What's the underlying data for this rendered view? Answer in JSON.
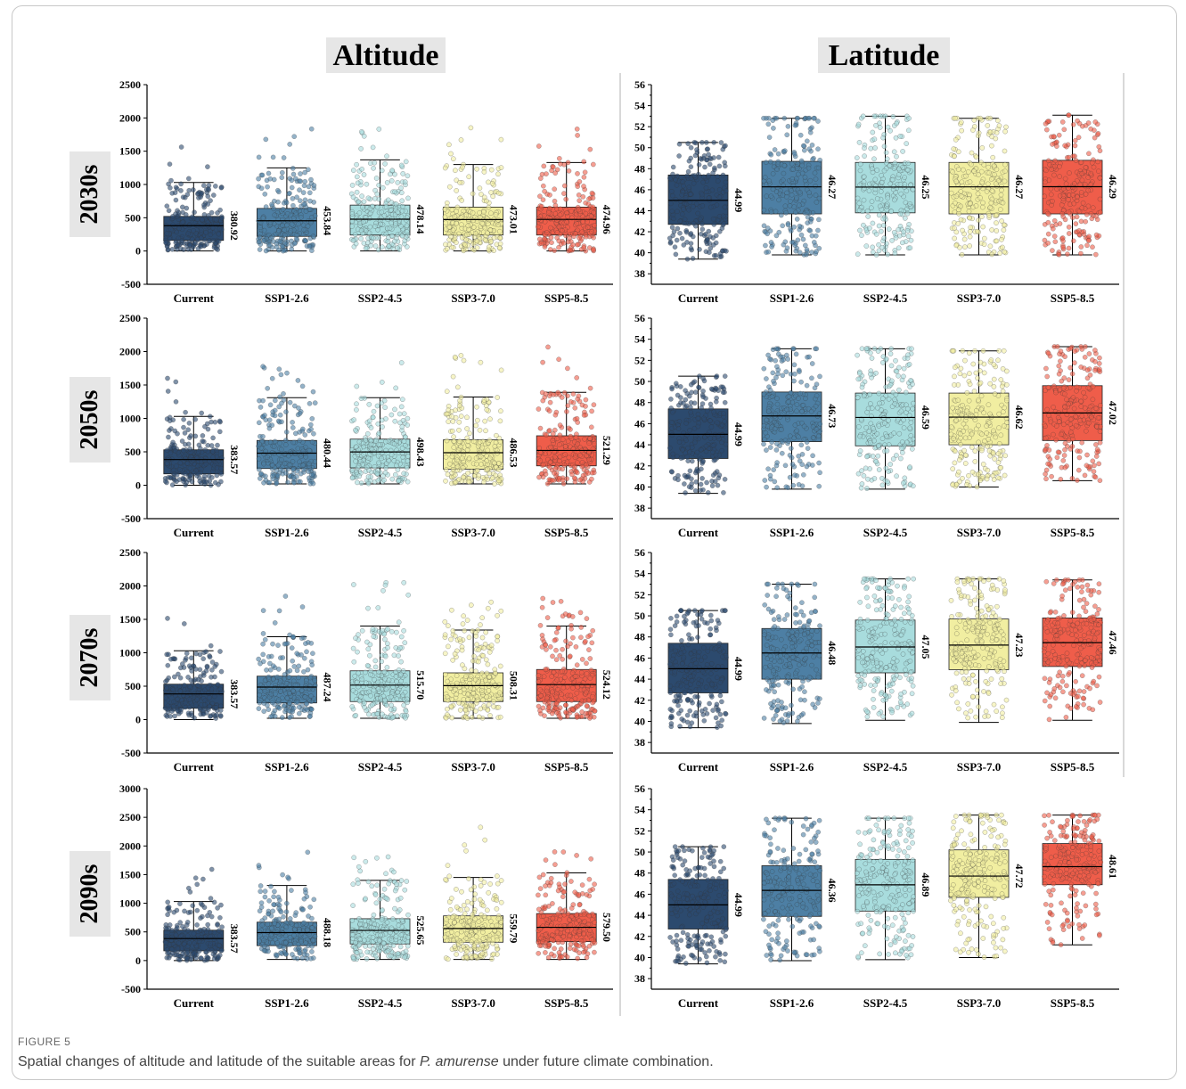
{
  "figure": {
    "label": "FIGURE 5",
    "caption_before": "Spatial changes of altitude and latitude of the suitable areas for ",
    "caption_species": "P. amurense",
    "caption_after": " under future climate combination."
  },
  "column_titles": {
    "altitude": "Altitude",
    "latitude": "Latitude"
  },
  "row_labels": [
    "2030s",
    "2050s",
    "2070s",
    "2090s"
  ],
  "colors": [
    "#2c4a6e",
    "#4d7fa4",
    "#a8dcdd",
    "#f1eea1",
    "#ef5d4a"
  ],
  "chart_data": [
    {
      "type": "box",
      "metric": "Altitude",
      "period": "2030s",
      "categories": [
        "Current",
        "SSP1-2.6",
        "SSP2-4.5",
        "SSP3-7.0",
        "SSP5-8.5"
      ],
      "ylim": [
        -500,
        2500
      ],
      "yticks": [
        -500,
        0,
        500,
        1000,
        1500,
        2000,
        2500
      ],
      "q1": [
        160,
        220,
        240,
        240,
        240
      ],
      "median": [
        381,
        454,
        478,
        473,
        475
      ],
      "q3": [
        520,
        640,
        690,
        660,
        660
      ],
      "whisker_low": [
        0,
        0,
        0,
        0,
        0
      ],
      "whisker_high": [
        1030,
        1250,
        1370,
        1300,
        1330
      ],
      "point_max": [
        1800,
        2040,
        1870,
        2100,
        2030
      ],
      "labels": [
        "380.92",
        "453.84",
        "478.14",
        "473.01",
        "474.96"
      ]
    },
    {
      "type": "box",
      "metric": "Latitude",
      "period": "2030s",
      "categories": [
        "Current",
        "SSP1-2.6",
        "SSP2-4.5",
        "SSP3-7.0",
        "SSP5-8.5"
      ],
      "ylim": [
        37,
        56
      ],
      "yticks": [
        38,
        40,
        42,
        44,
        46,
        48,
        50,
        52,
        54,
        56
      ],
      "q1": [
        42.7,
        43.7,
        43.8,
        43.7,
        43.7
      ],
      "median": [
        44.99,
        46.27,
        46.25,
        46.27,
        46.29
      ],
      "q3": [
        47.4,
        48.7,
        48.6,
        48.6,
        48.8
      ],
      "whisker_low": [
        39.4,
        39.8,
        39.8,
        39.8,
        39.8
      ],
      "whisker_high": [
        50.5,
        52.8,
        53.0,
        52.8,
        53.1
      ],
      "point_max": [
        50.5,
        52.8,
        53.0,
        52.8,
        53.1
      ],
      "labels": [
        "44.99",
        "46.27",
        "46.25",
        "46.27",
        "46.29"
      ]
    },
    {
      "type": "box",
      "metric": "Altitude",
      "period": "2050s",
      "categories": [
        "Current",
        "SSP1-2.6",
        "SSP2-4.5",
        "SSP3-7.0",
        "SSP5-8.5"
      ],
      "ylim": [
        -500,
        2500
      ],
      "yticks": [
        -500,
        0,
        500,
        1000,
        1500,
        2000,
        2500
      ],
      "q1": [
        170,
        250,
        260,
        240,
        290
      ],
      "median": [
        384,
        480,
        498,
        487,
        521
      ],
      "q3": [
        530,
        670,
        690,
        680,
        740
      ],
      "whisker_low": [
        0,
        20,
        20,
        20,
        20
      ],
      "whisker_high": [
        1030,
        1310,
        1310,
        1320,
        1390
      ],
      "point_max": [
        1630,
        1860,
        1980,
        1970,
        2100
      ],
      "labels": [
        "383.57",
        "480.44",
        "498.43",
        "486.53",
        "521.29"
      ]
    },
    {
      "type": "box",
      "metric": "Latitude",
      "period": "2050s",
      "categories": [
        "Current",
        "SSP1-2.6",
        "SSP2-4.5",
        "SSP3-7.0",
        "SSP5-8.5"
      ],
      "ylim": [
        37,
        56
      ],
      "yticks": [
        38,
        40,
        42,
        44,
        46,
        48,
        50,
        52,
        54,
        56
      ],
      "q1": [
        42.7,
        44.3,
        43.9,
        44.0,
        44.4
      ],
      "median": [
        44.99,
        46.73,
        46.59,
        46.62,
        47.02
      ],
      "q3": [
        47.4,
        49.0,
        48.9,
        48.9,
        49.6
      ],
      "whisker_low": [
        39.4,
        39.8,
        39.8,
        40.0,
        40.6
      ],
      "whisker_high": [
        50.5,
        53.1,
        53.1,
        52.9,
        53.3
      ],
      "point_max": [
        50.5,
        53.1,
        53.1,
        52.9,
        53.3
      ],
      "labels": [
        "44.99",
        "46.73",
        "46.59",
        "46.62",
        "47.02"
      ]
    },
    {
      "type": "box",
      "metric": "Altitude",
      "period": "2070s",
      "categories": [
        "Current",
        "SSP1-2.6",
        "SSP2-4.5",
        "SSP3-7.0",
        "SSP5-8.5"
      ],
      "ylim": [
        -500,
        2500
      ],
      "yticks": [
        -500,
        0,
        500,
        1000,
        1500,
        2000,
        2500
      ],
      "q1": [
        170,
        250,
        270,
        270,
        270
      ],
      "median": [
        384,
        487,
        516,
        508,
        524
      ],
      "q3": [
        530,
        650,
        730,
        700,
        750
      ],
      "whisker_low": [
        0,
        20,
        20,
        20,
        20
      ],
      "whisker_high": [
        1030,
        1240,
        1400,
        1340,
        1400
      ],
      "point_max": [
        1630,
        1850,
        2050,
        1760,
        1830
      ],
      "labels": [
        "383.57",
        "487.24",
        "515.70",
        "508.31",
        "524.12"
      ]
    },
    {
      "type": "box",
      "metric": "Latitude",
      "period": "2070s",
      "categories": [
        "Current",
        "SSP1-2.6",
        "SSP2-4.5",
        "SSP3-7.0",
        "SSP5-8.5"
      ],
      "ylim": [
        37,
        56
      ],
      "yticks": [
        38,
        40,
        42,
        44,
        46,
        48,
        50,
        52,
        54,
        56
      ],
      "q1": [
        42.7,
        44.0,
        44.6,
        44.9,
        45.2
      ],
      "median": [
        44.99,
        46.48,
        47.05,
        47.23,
        47.46
      ],
      "q3": [
        47.4,
        48.8,
        49.6,
        49.7,
        49.8
      ],
      "whisker_low": [
        39.4,
        39.8,
        40.1,
        39.9,
        40.1
      ],
      "whisker_high": [
        50.5,
        53.0,
        53.5,
        53.5,
        53.4
      ],
      "point_max": [
        50.5,
        53.0,
        53.5,
        53.5,
        53.4
      ],
      "labels": [
        "44.99",
        "46.48",
        "47.05",
        "47.23",
        "47.46"
      ]
    },
    {
      "type": "box",
      "metric": "Altitude",
      "period": "2090s",
      "categories": [
        "Current",
        "SSP1-2.6",
        "SSP2-4.5",
        "SSP3-7.0",
        "SSP5-8.5"
      ],
      "ylim": [
        -500,
        3000
      ],
      "yticks": [
        -500,
        0,
        500,
        1000,
        1500,
        2000,
        2500,
        3000
      ],
      "q1": [
        170,
        260,
        290,
        320,
        330
      ],
      "median": [
        384,
        488,
        526,
        560,
        580
      ],
      "q3": [
        530,
        670,
        730,
        780,
        820
      ],
      "whisker_low": [
        0,
        20,
        20,
        20,
        20
      ],
      "whisker_high": [
        1030,
        1310,
        1400,
        1450,
        1530
      ],
      "point_max": [
        1630,
        1930,
        1840,
        2390,
        2020
      ],
      "labels": [
        "383.57",
        "488.18",
        "525.65",
        "559.79",
        "579.50"
      ]
    },
    {
      "type": "box",
      "metric": "Latitude",
      "period": "2090s",
      "categories": [
        "Current",
        "SSP1-2.6",
        "SSP2-4.5",
        "SSP3-7.0",
        "SSP5-8.5"
      ],
      "ylim": [
        37,
        56
      ],
      "yticks": [
        38,
        40,
        42,
        44,
        46,
        48,
        50,
        52,
        54,
        56
      ],
      "q1": [
        42.7,
        43.9,
        44.4,
        45.7,
        46.9
      ],
      "median": [
        44.99,
        46.36,
        46.89,
        47.72,
        48.61
      ],
      "q3": [
        47.4,
        48.7,
        49.3,
        50.2,
        50.8
      ],
      "whisker_low": [
        39.4,
        39.7,
        39.8,
        40.0,
        41.2
      ],
      "whisker_high": [
        50.5,
        53.2,
        53.2,
        53.5,
        53.5
      ],
      "point_max": [
        50.5,
        53.2,
        53.2,
        53.5,
        53.5
      ],
      "labels": [
        "44.99",
        "46.36",
        "46.89",
        "47.72",
        "48.61"
      ]
    }
  ]
}
